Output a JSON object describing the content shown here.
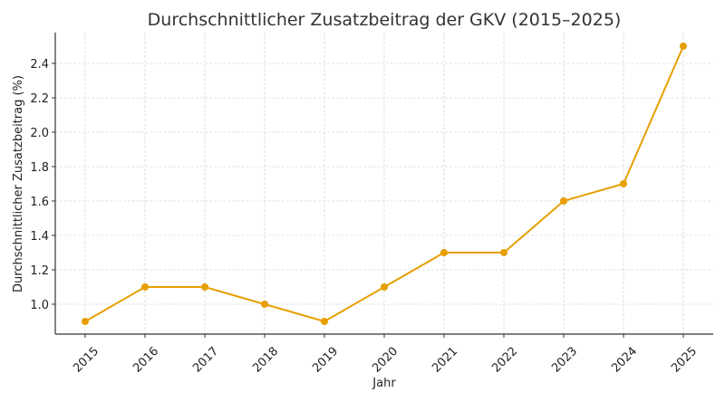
{
  "chart_data": {
    "type": "line",
    "title": "Durchschnittlicher Zusatzbeitrag der GKV (2015–2025)",
    "xlabel": "Jahr",
    "ylabel": "Durchschnittlicher Zusatzbeitrag (%)",
    "categories": [
      "2015",
      "2016",
      "2017",
      "2018",
      "2019",
      "2020",
      "2021",
      "2022",
      "2023",
      "2024",
      "2025"
    ],
    "series": [
      {
        "name": "Durchschnittlicher Zusatzbeitrag",
        "values": [
          0.9,
          1.1,
          1.1,
          1.0,
          0.9,
          1.1,
          1.3,
          1.3,
          1.6,
          1.7,
          2.5
        ],
        "color": "#e69f00",
        "marker": "circle"
      }
    ],
    "yticks": [
      1.0,
      1.2,
      1.4,
      1.6,
      1.8,
      2.0,
      2.2,
      2.4
    ],
    "ytick_labels": [
      "1.0",
      "1.2",
      "1.4",
      "1.6",
      "1.8",
      "2.0",
      "2.2",
      "2.4"
    ],
    "ylim": [
      0.82,
      2.58
    ],
    "grid": true,
    "x_tick_rotation": 45,
    "legend": null
  }
}
